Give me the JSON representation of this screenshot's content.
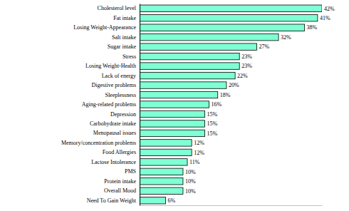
{
  "chart_data": {
    "type": "bar",
    "orientation": "horizontal",
    "categories": [
      "Cholesterol level",
      "Fat intake",
      "Losing Weight-Appearance",
      "Salt intake",
      "Sugar intake",
      "Stress",
      "Losing Weight-Health",
      "Lack of energy",
      "Digestive problems",
      "Sleeplessness",
      "Aging-related problems",
      "Depression",
      "Carbohydrate intake",
      "Menopausal issues",
      "Memory/concentration problems",
      "Food Allergies",
      "Lactose Intolerance",
      "PMS",
      "Protein intake",
      "Overall Mood",
      "Need To Gain Weight"
    ],
    "values": [
      42,
      41,
      38,
      32,
      27,
      23,
      23,
      22,
      20,
      18,
      16,
      15,
      15,
      15,
      12,
      12,
      11,
      10,
      10,
      10,
      6
    ],
    "value_labels": [
      "42%",
      "41%",
      "38%",
      "32%",
      "27%",
      "23%",
      "23%",
      "22%",
      "20%",
      "18%",
      "16%",
      "15%",
      "15%",
      "15%",
      "12%",
      "12%",
      "11%",
      "10%",
      "10%",
      "10%",
      "6%"
    ],
    "color": "#7fffd4",
    "xlim": [
      0,
      42
    ],
    "data_labels": true,
    "tick_labels": "y",
    "grid": false
  }
}
